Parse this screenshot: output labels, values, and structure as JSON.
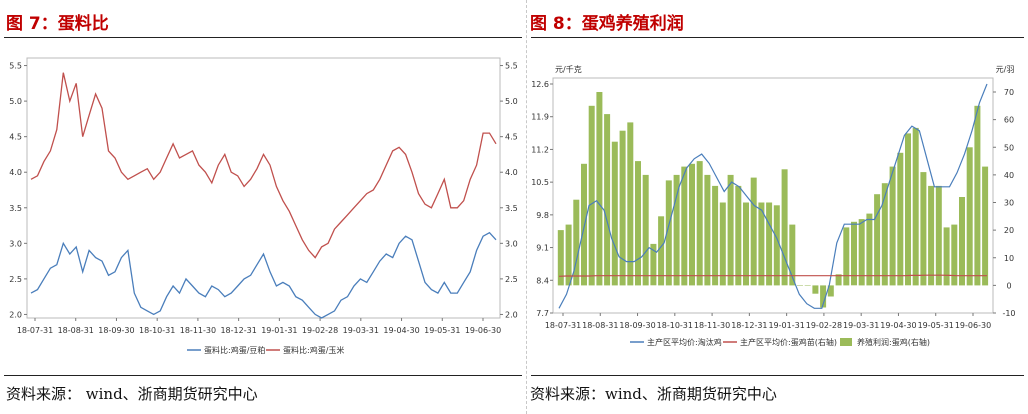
{
  "left": {
    "title": "图 7：蛋料比",
    "source": "资料来源：  wind、浙商期货研究中心"
  },
  "right": {
    "title": "图 8：蛋鸡养殖利润",
    "source": "资料来源：wind、浙商期货研究中心"
  },
  "chart_data": [
    {
      "type": "line",
      "title": "",
      "x_tick_labels": [
        "18-07-31",
        "18-08-31",
        "18-09-30",
        "18-10-31",
        "18-11-30",
        "18-12-31",
        "19-01-31",
        "19-02-28",
        "19-03-31",
        "19-04-30",
        "19-05-31",
        "19-06-30"
      ],
      "y_left_ticks": [
        "5.5",
        "5.0",
        "4.5",
        "4.0",
        "3.5",
        "3.0",
        "2.5",
        "2.0"
      ],
      "y_right_ticks": [
        "5.5",
        "5.0",
        "4.5",
        "4.0",
        "3.5",
        "3.0",
        "2.5",
        "2.0"
      ],
      "ylim": [
        1.95,
        5.55
      ],
      "grid": false,
      "legend_position": "bottom",
      "series": [
        {
          "name": "蛋料比:鸡蛋/豆粕",
          "color": "#4a7ebb",
          "values": [
            2.3,
            2.35,
            2.5,
            2.65,
            2.7,
            3.0,
            2.85,
            2.95,
            2.6,
            2.9,
            2.8,
            2.75,
            2.55,
            2.6,
            2.8,
            2.9,
            2.3,
            2.1,
            2.05,
            2.0,
            2.05,
            2.25,
            2.4,
            2.3,
            2.5,
            2.4,
            2.3,
            2.25,
            2.4,
            2.35,
            2.25,
            2.3,
            2.4,
            2.5,
            2.55,
            2.7,
            2.85,
            2.6,
            2.4,
            2.45,
            2.4,
            2.25,
            2.2,
            2.1,
            2.0,
            1.95,
            2.0,
            2.05,
            2.2,
            2.25,
            2.4,
            2.5,
            2.45,
            2.6,
            2.75,
            2.85,
            2.8,
            3.0,
            3.1,
            3.05,
            2.75,
            2.45,
            2.35,
            2.3,
            2.45,
            2.3,
            2.3,
            2.45,
            2.6,
            2.9,
            3.1,
            3.15,
            3.05
          ]
        },
        {
          "name": "蛋料比:鸡蛋/玉米",
          "color": "#c0504d",
          "values": [
            3.9,
            3.95,
            4.15,
            4.3,
            4.6,
            5.4,
            5.0,
            5.25,
            4.5,
            4.8,
            5.1,
            4.9,
            4.3,
            4.2,
            4.0,
            3.9,
            3.95,
            4.0,
            4.05,
            3.9,
            4.0,
            4.2,
            4.4,
            4.2,
            4.25,
            4.3,
            4.1,
            4.0,
            3.85,
            4.1,
            4.25,
            4.0,
            3.95,
            3.8,
            3.9,
            4.05,
            4.25,
            4.1,
            3.8,
            3.6,
            3.45,
            3.25,
            3.05,
            2.9,
            2.8,
            2.95,
            3.0,
            3.2,
            3.3,
            3.4,
            3.5,
            3.6,
            3.7,
            3.75,
            3.9,
            4.1,
            4.3,
            4.35,
            4.25,
            4.0,
            3.7,
            3.55,
            3.5,
            3.7,
            3.9,
            3.5,
            3.5,
            3.6,
            3.9,
            4.1,
            4.55,
            4.55,
            4.4
          ]
        }
      ]
    },
    {
      "type": "bar",
      "title": "",
      "x_tick_labels": [
        "18-07-31",
        "18-08-31",
        "18-09-30",
        "18-10-31",
        "18-11-30",
        "18-12-31",
        "19-01-31",
        "19-02-28",
        "19-03-31",
        "19-04-30",
        "19-05-31",
        "19-06-30"
      ],
      "y_left_unit": "元/千克",
      "y_right_unit": "元/羽",
      "y_left_ticks": [
        "12.6",
        "11.9",
        "11.2",
        "10.5",
        "9.8",
        "9.1",
        "8.4",
        "7.7"
      ],
      "y_right_ticks": [
        "70",
        "60",
        "50",
        "40",
        "30",
        "20",
        "10",
        "0",
        "-10"
      ],
      "ylim_left": [
        7.7,
        12.6
      ],
      "ylim_right": [
        -10,
        70
      ],
      "grid": false,
      "legend_position": "bottom",
      "series": [
        {
          "name": "主产区平均价:淘汰鸡",
          "type": "line",
          "axis": "left",
          "color": "#4a7ebb",
          "values": [
            7.8,
            8.1,
            8.6,
            9.3,
            10.0,
            10.1,
            9.9,
            9.3,
            8.9,
            8.8,
            8.8,
            8.9,
            9.1,
            9.0,
            9.2,
            9.8,
            10.4,
            10.8,
            11.0,
            11.1,
            10.9,
            10.6,
            10.3,
            10.5,
            10.4,
            10.2,
            10.0,
            9.9,
            9.6,
            9.3,
            8.9,
            8.5,
            8.1,
            7.9,
            7.8,
            7.8,
            8.3,
            9.2,
            9.6,
            9.6,
            9.6,
            9.7,
            9.7,
            10.0,
            10.5,
            11.0,
            11.5,
            11.7,
            11.6,
            11.0,
            10.4,
            10.4,
            10.4,
            10.7,
            11.1,
            11.6,
            12.2,
            12.6
          ]
        },
        {
          "name": "主产区平均价:蛋鸡苗(右轴)",
          "type": "line",
          "axis": "right",
          "color": "#c0504d",
          "values": [
            3.3,
            3.4,
            3.4,
            3.4,
            3.4,
            3.5,
            3.5,
            3.5,
            3.5,
            3.5,
            3.5,
            3.5,
            3.5,
            3.5,
            3.5,
            3.5,
            3.5,
            3.5,
            3.5,
            3.5,
            3.5,
            3.5,
            3.5,
            3.5,
            3.5,
            3.5,
            3.5,
            3.5,
            3.5,
            3.5,
            3.5,
            3.5,
            3.5,
            3.5,
            3.5,
            3.5,
            3.5,
            3.5,
            3.5,
            3.5,
            3.5,
            3.5,
            3.5,
            3.5,
            3.5,
            3.5,
            3.5,
            3.6,
            3.6,
            3.7,
            3.7,
            3.7,
            3.6,
            3.5,
            3.5,
            3.5,
            3.5,
            3.5
          ]
        },
        {
          "name": "养殖利润:蛋鸡(右轴)",
          "type": "bar",
          "axis": "right",
          "color": "#9bbb59",
          "values": [
            20,
            22,
            31,
            44,
            65,
            70,
            62,
            52,
            56,
            59,
            45,
            40,
            15,
            25,
            38,
            40,
            43,
            44,
            45,
            40,
            36,
            30,
            40,
            36,
            30,
            39,
            30,
            30,
            29,
            42,
            22,
            0,
            0,
            -3,
            -8,
            -4,
            4,
            21,
            23,
            24,
            26,
            33,
            37,
            43,
            48,
            55,
            57,
            41,
            36,
            36,
            21,
            22,
            32,
            50,
            65,
            43
          ]
        }
      ]
    }
  ]
}
